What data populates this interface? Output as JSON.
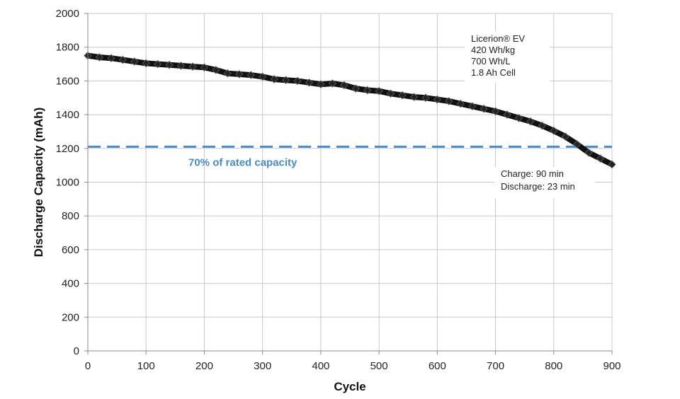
{
  "chart_data": {
    "type": "line",
    "title": "",
    "xlabel": "Cycle",
    "ylabel": "Discharge Capacity (mAh)",
    "xlim": [
      0,
      900
    ],
    "ylim": [
      0,
      2000
    ],
    "x_ticks": [
      0,
      100,
      200,
      300,
      400,
      500,
      600,
      700,
      800,
      900
    ],
    "y_ticks": [
      0,
      200,
      400,
      600,
      800,
      1000,
      1200,
      1400,
      1600,
      1800,
      2000
    ],
    "grid": true,
    "legend": "none",
    "series": [
      {
        "color": "#111111",
        "x": [
          0,
          20,
          40,
          60,
          80,
          100,
          120,
          140,
          160,
          180,
          200,
          220,
          240,
          260,
          280,
          300,
          320,
          340,
          360,
          380,
          400,
          420,
          440,
          460,
          480,
          500,
          520,
          540,
          560,
          580,
          600,
          620,
          640,
          660,
          680,
          700,
          720,
          740,
          760,
          780,
          800,
          820,
          840,
          860,
          880,
          900
        ],
        "y": [
          1750,
          1740,
          1735,
          1725,
          1715,
          1705,
          1700,
          1695,
          1690,
          1685,
          1680,
          1665,
          1645,
          1640,
          1635,
          1625,
          1610,
          1605,
          1600,
          1590,
          1580,
          1585,
          1575,
          1555,
          1545,
          1540,
          1525,
          1515,
          1505,
          1500,
          1490,
          1480,
          1465,
          1450,
          1435,
          1420,
          1400,
          1380,
          1360,
          1335,
          1305,
          1270,
          1225,
          1175,
          1140,
          1105
        ]
      }
    ],
    "reference_line": {
      "y": 1210,
      "label": "70% of rated capacity",
      "color": "#4a8cc4",
      "style": "dashed"
    },
    "annotations": [
      {
        "id": "cell-spec",
        "lines": [
          "Licerion® EV",
          "420 Wh/kg",
          "700 Wh/L",
          "1.8 Ah Cell"
        ]
      },
      {
        "id": "rates",
        "lines": [
          "Charge: 90 min",
          "Discharge: 23 min"
        ]
      }
    ]
  }
}
